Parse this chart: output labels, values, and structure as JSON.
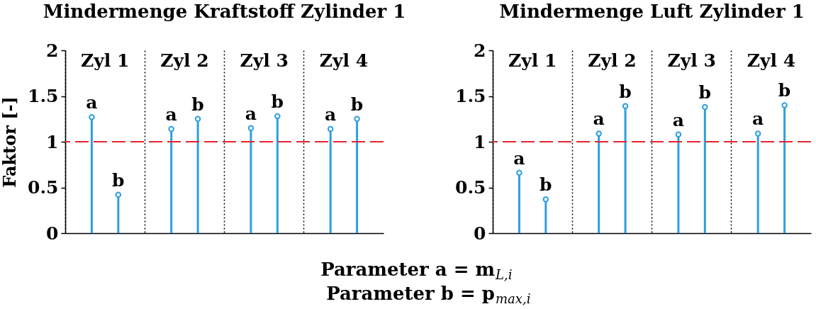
{
  "chart_data": [
    {
      "type": "lollipop",
      "title": "Mindermenge Kraftstoff Zylinder 1",
      "ylabel": "Faktor [-]",
      "categories": [
        "Zyl 1",
        "Zyl 2",
        "Zyl 3",
        "Zyl 4"
      ],
      "series": [
        {
          "name": "a",
          "color": "#2e9fdc",
          "values": [
            1.27,
            1.14,
            1.15,
            1.14
          ]
        },
        {
          "name": "b",
          "color": "#2e9fdc",
          "values": [
            0.42,
            1.25,
            1.28,
            1.25
          ]
        }
      ],
      "ylim": [
        0,
        2
      ],
      "yticks": [
        0,
        0.5,
        1,
        1.5,
        2
      ],
      "grid": "x",
      "marker": "circle",
      "ref_lines": [
        {
          "axis": "y",
          "value": 1,
          "color": "#e8222b",
          "line_style": "dashed"
        }
      ]
    },
    {
      "type": "lollipop",
      "title": "Mindermenge Luft Zylinder 1",
      "categories": [
        "Zyl 1",
        "Zyl 2",
        "Zyl 3",
        "Zyl 4"
      ],
      "series": [
        {
          "name": "a",
          "color": "#2e9fdc",
          "values": [
            0.66,
            1.09,
            1.08,
            1.09
          ]
        },
        {
          "name": "b",
          "color": "#2e9fdc",
          "values": [
            0.37,
            1.39,
            1.38,
            1.4
          ]
        }
      ],
      "ylim": [
        0,
        2
      ],
      "yticks": [
        0,
        0.5,
        1,
        1.5,
        2
      ],
      "grid": "x",
      "marker": "circle",
      "ref_lines": [
        {
          "axis": "y",
          "value": 1,
          "color": "#e8222b",
          "line_style": "dashed"
        }
      ],
      "annotations": [
        "Parameter a = m$_{L,i}$",
        "Parameter b = p$_{max,i}$"
      ]
    }
  ]
}
